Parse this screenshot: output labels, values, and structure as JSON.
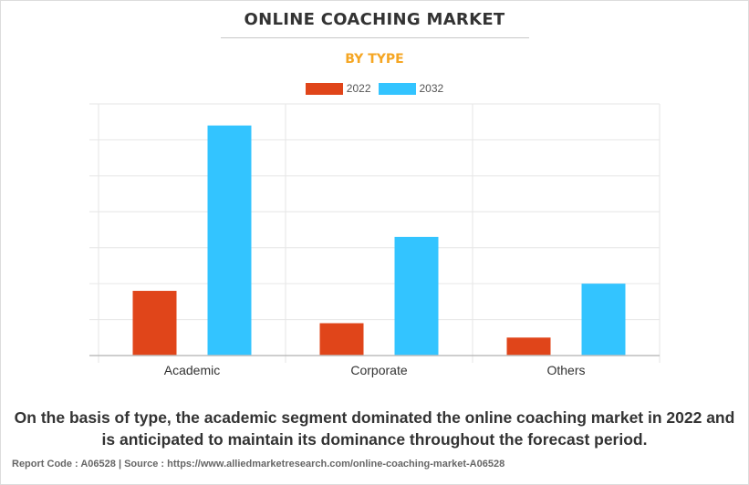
{
  "title": "ONLINE COACHING MARKET",
  "subtitle": "BY TYPE",
  "caption": "On the basis of type, the academic segment dominated the online coaching market in 2022 and is anticipated to maintain its dominance throughout the forecast period.",
  "footer": "Report Code : A06528  |  Source : https://www.alliedmarketresearch.com/online-coaching-market-A06528",
  "colors": {
    "series_2022": "#e0451a",
    "series_2032": "#33c4ff",
    "grid": "#e6e6e6",
    "subtitle": "#f5a623"
  },
  "chart_data": {
    "type": "bar",
    "categories": [
      "Academic",
      "Corporate",
      "Others"
    ],
    "series": [
      {
        "name": "2022",
        "values": [
          1.8,
          0.9,
          0.5
        ]
      },
      {
        "name": "2032",
        "values": [
          6.4,
          3.3,
          2.0
        ]
      }
    ],
    "ylim": [
      0,
      7
    ],
    "y_ticks_labeled": false,
    "grid": true,
    "legend": "top-center",
    "xlabel": "",
    "ylabel": ""
  }
}
